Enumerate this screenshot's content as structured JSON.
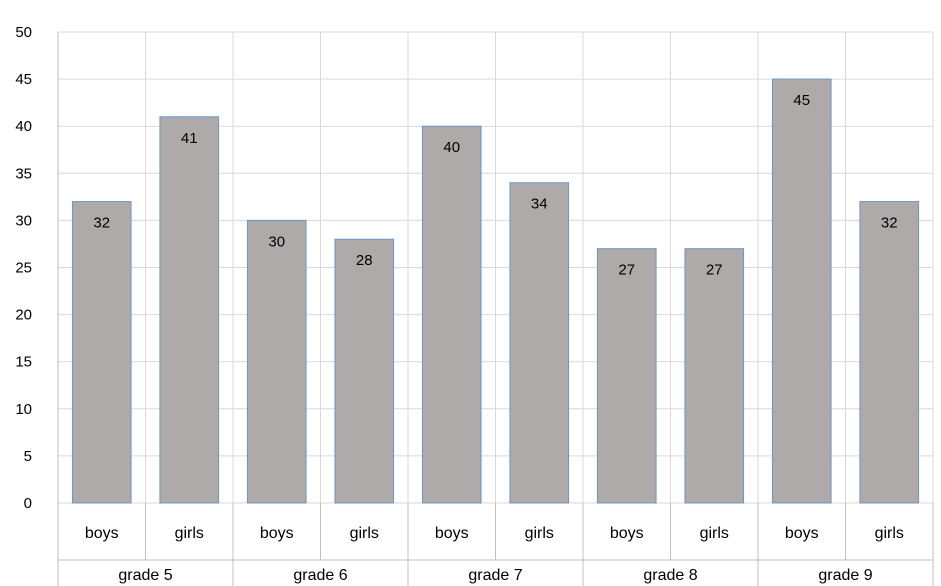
{
  "chart_data": {
    "type": "bar",
    "title": "",
    "xlabel": "",
    "ylabel": "",
    "ylim": [
      0,
      50
    ],
    "yticks": [
      0,
      5,
      10,
      15,
      20,
      25,
      30,
      35,
      40,
      45,
      50
    ],
    "grid": true,
    "groups": [
      "grade 5",
      "grade 6",
      "grade 7",
      "grade 8",
      "grade 9"
    ],
    "categories": [
      "boys",
      "girls",
      "boys",
      "girls",
      "boys",
      "girls",
      "boys",
      "girls",
      "boys",
      "girls"
    ],
    "values": [
      32,
      41,
      30,
      28,
      40,
      34,
      27,
      27,
      45,
      32
    ],
    "colors": {
      "bar_fill": "#aeaaa9",
      "bar_stroke": "#6d95c8",
      "grid": "#d9d9d9",
      "axis": "#bfbfbf"
    }
  }
}
